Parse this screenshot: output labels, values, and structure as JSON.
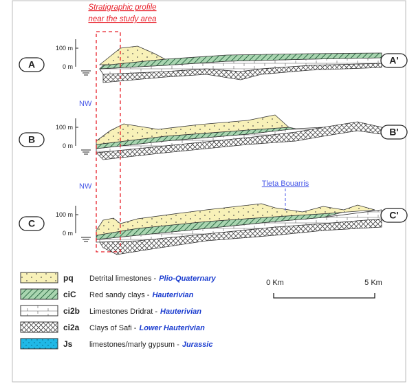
{
  "profile_label": [
    "Stratigraphic profile",
    "near the study area"
  ],
  "sections": [
    {
      "left": "A",
      "right": "A'",
      "scale": [
        "100 m",
        "0 m"
      ]
    },
    {
      "left": "B",
      "right": "B'",
      "scale": [
        "100 m",
        "0 m"
      ]
    },
    {
      "left": "C",
      "right": "C'",
      "scale": [
        "100 m",
        "0 m"
      ]
    }
  ],
  "orientation_labels": [
    "NW",
    "NW"
  ],
  "locality": "Tleta Bouarris",
  "legend": [
    {
      "code": "pq",
      "description": "Detrital limestones -",
      "age": "Plio-Quaternary"
    },
    {
      "code": "ciC",
      "description": "Red sandy clays -",
      "age": "Hauterivian"
    },
    {
      "code": "ci2b",
      "description": "Limestones Dridrat -",
      "age": "Hauterivian"
    },
    {
      "code": "ci2a",
      "description": "Clays of Safi -",
      "age": "Lower Hauterivian"
    },
    {
      "code": "Js",
      "description": "limestones/marly gypsum -",
      "age": "Jurassic"
    }
  ],
  "scale_bar": [
    "0 Km",
    "5 Km"
  ]
}
